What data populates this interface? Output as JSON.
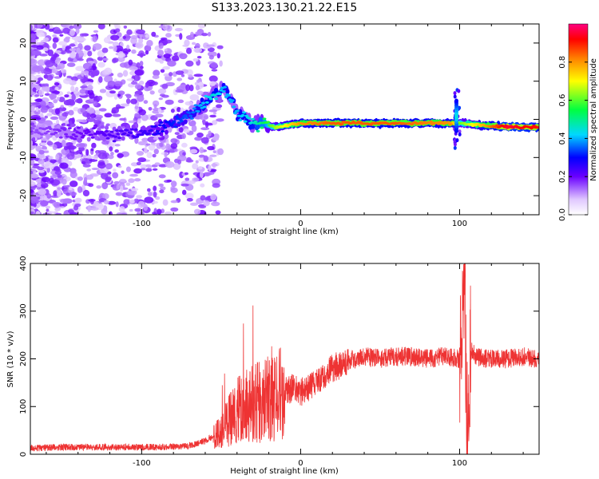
{
  "title": "S133.2023.130.21.22.E15",
  "chart_data": [
    {
      "type": "heatmap",
      "name": "spectrogram",
      "xlabel": "Height of straight line (km)",
      "ylabel": "Frequency (Hz)",
      "xlim": [
        -170,
        150
      ],
      "ylim": [
        -25,
        25
      ],
      "xticks": [
        -100,
        0,
        100
      ],
      "xtick_labels": [
        "-100",
        "0",
        "100"
      ],
      "yticks": [
        -20,
        -10,
        0,
        10,
        20
      ],
      "ytick_labels": [
        "-20",
        "-10",
        "0",
        "10",
        "20"
      ],
      "colorbar": {
        "label": "Normalized spectral amplitude",
        "range": [
          0,
          1
        ],
        "ticks": [
          0.0,
          0.2,
          0.4,
          0.6,
          0.8
        ],
        "tick_labels": [
          "0.0",
          "0.2",
          "0.4",
          "0.6",
          "0.8"
        ]
      },
      "ridge": [
        {
          "x": -170,
          "y": -3,
          "amp": 0.15
        },
        {
          "x": -120,
          "y": -4,
          "amp": 0.22
        },
        {
          "x": -95,
          "y": -3,
          "amp": 0.25
        },
        {
          "x": -85,
          "y": -2,
          "amp": 0.3
        },
        {
          "x": -70,
          "y": 1,
          "amp": 0.35
        },
        {
          "x": -55,
          "y": 6,
          "amp": 0.45
        },
        {
          "x": -48,
          "y": 8,
          "amp": 0.4
        },
        {
          "x": -40,
          "y": 2,
          "amp": 0.4
        },
        {
          "x": -30,
          "y": -1,
          "amp": 0.45
        },
        {
          "x": -15,
          "y": -2,
          "amp": 0.65
        },
        {
          "x": 0,
          "y": -1,
          "amp": 0.8
        },
        {
          "x": 20,
          "y": -1,
          "amp": 0.85
        },
        {
          "x": 60,
          "y": -1,
          "amp": 0.85
        },
        {
          "x": 95,
          "y": -1,
          "amp": 0.8
        },
        {
          "x": 100,
          "y": -1,
          "amp": 0.6
        },
        {
          "x": 130,
          "y": -2,
          "amp": 0.95
        },
        {
          "x": 150,
          "y": -2,
          "amp": 0.9
        }
      ]
    },
    {
      "type": "line",
      "name": "snr",
      "xlabel": "Height of straight line (km)",
      "ylabel": "SNR (10 * v/v)",
      "xlim": [
        -170,
        150
      ],
      "ylim": [
        0,
        400
      ],
      "xticks": [
        -100,
        0,
        100
      ],
      "xtick_labels": [
        "-100",
        "0",
        "100"
      ],
      "yticks": [
        0,
        100,
        200,
        300,
        400
      ],
      "ytick_labels": [
        "0",
        "100",
        "200",
        "300",
        "400"
      ],
      "color": "#ee3333",
      "series": [
        {
          "name": "SNR",
          "x": [
            -170,
            -150,
            -130,
            -110,
            -90,
            -70,
            -60,
            -50,
            -45,
            -40,
            -35,
            -30,
            -25,
            -20,
            -15,
            -10,
            -5,
            0,
            5,
            10,
            20,
            30,
            40,
            50,
            60,
            70,
            80,
            90,
            100,
            103,
            105,
            107,
            110,
            120,
            130,
            140,
            150
          ],
          "values": [
            10,
            12,
            12,
            12,
            12,
            15,
            25,
            45,
            70,
            90,
            100,
            110,
            110,
            115,
            120,
            130,
            140,
            130,
            140,
            155,
            180,
            195,
            205,
            200,
            205,
            205,
            200,
            205,
            200,
            380,
            20,
            220,
            205,
            200,
            200,
            205,
            200
          ]
        }
      ]
    }
  ]
}
